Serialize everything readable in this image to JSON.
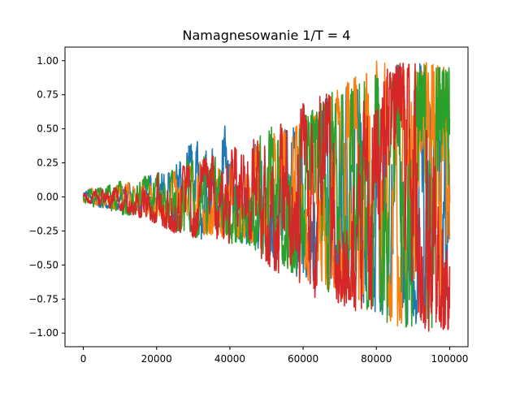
{
  "chart_data": {
    "type": "line",
    "title": "Namagnesowanie 1/T = 4",
    "xlabel": "",
    "ylabel": "",
    "xlim": [
      -5000,
      105000
    ],
    "ylim": [
      -1.1,
      1.1
    ],
    "x_ticks": [
      0,
      20000,
      40000,
      60000,
      80000,
      100000
    ],
    "x_tick_labels": [
      "0",
      "20000",
      "40000",
      "60000",
      "80000",
      "100000"
    ],
    "y_ticks": [
      -1.0,
      -0.75,
      -0.5,
      -0.25,
      0.0,
      0.25,
      0.5,
      0.75,
      1.0
    ],
    "y_tick_labels": [
      "−1.00",
      "−0.75",
      "−0.50",
      "−0.25",
      "0.00",
      "0.25",
      "0.50",
      "0.75",
      "1.00"
    ],
    "grid": false,
    "legend": "none",
    "series": [
      {
        "color": "#1f77b4",
        "x": [
          0,
          5000,
          10000,
          15000,
          20000,
          25000,
          30000,
          35000,
          38000,
          40000,
          45000,
          50000,
          55000,
          60000,
          65000,
          70000,
          75000,
          80000,
          85000,
          90000,
          95000,
          100000
        ],
        "y_min": [
          -0.05,
          -0.08,
          -0.1,
          -0.12,
          -0.18,
          -0.25,
          -0.32,
          -0.3,
          -0.25,
          -0.3,
          -0.35,
          -0.4,
          -0.6,
          -0.65,
          -0.6,
          -0.7,
          -0.75,
          -0.85,
          -0.9,
          -0.95,
          -0.97,
          -0.98
        ],
        "y_max": [
          0.05,
          0.06,
          0.08,
          0.12,
          0.18,
          0.22,
          0.43,
          0.35,
          0.63,
          0.3,
          0.35,
          0.45,
          0.5,
          0.6,
          0.7,
          0.8,
          0.85,
          0.95,
          0.97,
          0.98,
          0.98,
          0.97
        ]
      },
      {
        "color": "#ff7f0e",
        "x": [
          0,
          5000,
          10000,
          15000,
          20000,
          25000,
          30000,
          35000,
          40000,
          45000,
          50000,
          55000,
          60000,
          65000,
          70000,
          75000,
          80000,
          85000,
          90000,
          95000,
          100000
        ],
        "y_min": [
          -0.04,
          -0.07,
          -0.1,
          -0.12,
          -0.16,
          -0.22,
          -0.28,
          -0.28,
          -0.3,
          -0.35,
          -0.4,
          -0.5,
          -0.6,
          -0.65,
          -0.75,
          -0.8,
          -0.9,
          -0.95,
          -0.97,
          -0.98,
          -0.98
        ],
        "y_max": [
          0.06,
          0.07,
          0.1,
          0.12,
          0.16,
          0.2,
          0.25,
          0.28,
          0.3,
          0.35,
          0.45,
          0.5,
          0.55,
          0.7,
          0.8,
          0.9,
          1.0,
          1.0,
          1.0,
          0.98,
          0.95
        ]
      },
      {
        "color": "#2ca02c",
        "x": [
          0,
          5000,
          10000,
          15000,
          20000,
          25000,
          30000,
          35000,
          40000,
          45000,
          50000,
          55000,
          60000,
          65000,
          70000,
          75000,
          80000,
          85000,
          90000,
          95000,
          100000
        ],
        "y_min": [
          -0.04,
          -0.1,
          -0.13,
          -0.14,
          -0.18,
          -0.25,
          -0.3,
          -0.3,
          -0.35,
          -0.35,
          -0.45,
          -0.55,
          -0.6,
          -0.7,
          -0.75,
          -0.8,
          -0.9,
          -0.95,
          -0.97,
          -0.97,
          -0.97
        ],
        "y_max": [
          0.05,
          0.07,
          0.12,
          0.14,
          0.18,
          0.22,
          0.33,
          0.28,
          0.35,
          0.42,
          0.5,
          0.55,
          0.6,
          0.75,
          0.8,
          0.85,
          0.9,
          0.98,
          0.97,
          0.96,
          0.95
        ]
      },
      {
        "color": "#d62728",
        "x": [
          0,
          5000,
          10000,
          15000,
          20000,
          25000,
          30000,
          35000,
          40000,
          45000,
          50000,
          55000,
          60000,
          65000,
          70000,
          75000,
          80000,
          85000,
          90000,
          95000,
          100000
        ],
        "y_min": [
          -0.03,
          -0.08,
          -0.1,
          -0.15,
          -0.2,
          -0.27,
          -0.3,
          -0.3,
          -0.35,
          -0.4,
          -0.5,
          -0.6,
          -0.8,
          -0.75,
          -0.8,
          -0.85,
          -0.9,
          -0.95,
          -0.97,
          -0.99,
          -0.98
        ],
        "y_max": [
          0.05,
          0.06,
          0.08,
          0.14,
          0.2,
          0.22,
          0.25,
          0.3,
          0.35,
          0.4,
          0.5,
          0.55,
          0.7,
          0.75,
          0.8,
          0.9,
          0.95,
          0.98,
          0.99,
          1.0,
          0.9
        ]
      }
    ]
  }
}
